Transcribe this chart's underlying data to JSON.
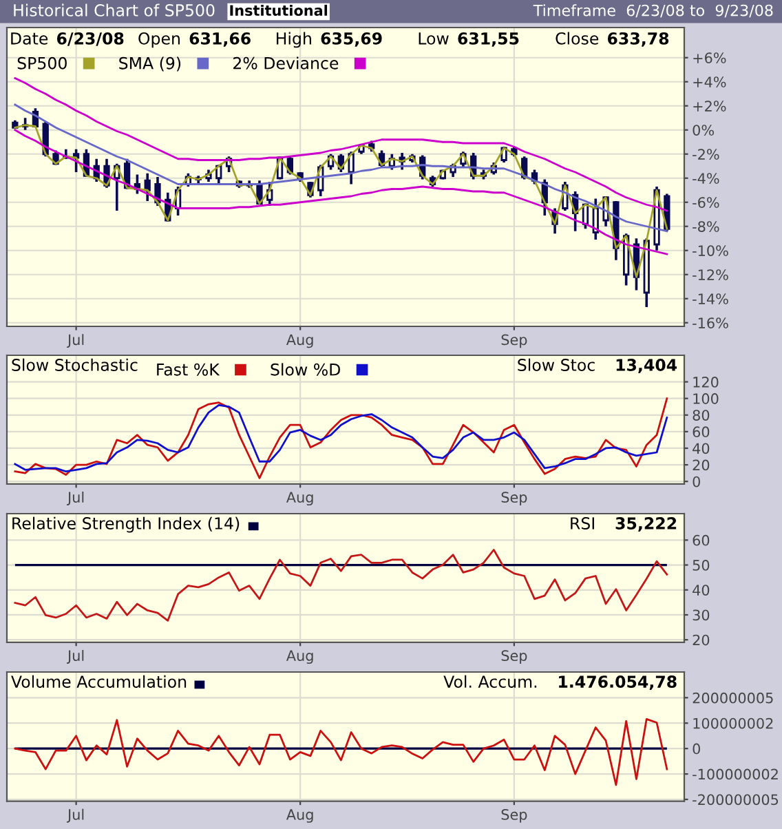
{
  "chart_data": [
    {
      "type": "candlestick",
      "title": "Historical Chart of SP500",
      "annotations": [
        "Institutional",
        "Timeframe  6/23/08 to  9/23/08",
        "Date",
        "6/23/08",
        "Open",
        "631,66",
        "High",
        "635,69",
        "Low",
        "631,55",
        "Close",
        "633,78"
      ],
      "categories": [
        null,
        null,
        null,
        null,
        null,
        null,
        "Jul",
        null,
        null,
        null,
        null,
        null,
        null,
        null,
        null,
        null,
        null,
        null,
        null,
        null,
        null,
        null,
        null,
        null,
        null,
        null,
        null,
        null,
        "Aug",
        null,
        null,
        null,
        null,
        null,
        null,
        null,
        null,
        null,
        null,
        null,
        null,
        null,
        null,
        null,
        null,
        null,
        null,
        null,
        null,
        "Sep",
        null,
        null,
        null,
        null,
        null,
        null,
        null,
        null,
        null,
        null,
        null,
        null,
        null,
        null,
        null
      ],
      "ohlc": [
        [
          0.6,
          0.8,
          0.1,
          0.2
        ],
        [
          0.3,
          1.0,
          0,
          0.4
        ],
        [
          1.5,
          1.8,
          0.2,
          0.3
        ],
        [
          0.5,
          0.7,
          -2.2,
          -2.0
        ],
        [
          -2.0,
          -1.7,
          -2.9,
          -2.8
        ],
        [
          -2.3,
          -1.6,
          -2.4,
          -2.2
        ],
        [
          -2.0,
          -1.6,
          -3.5,
          -2.3
        ],
        [
          -2.0,
          -1.6,
          -3.9,
          -3.8
        ],
        [
          -3.0,
          -2.4,
          -4.3,
          -4.0
        ],
        [
          -3.0,
          -2.4,
          -4.8,
          -4.6
        ],
        [
          -4.0,
          -2.8,
          -6.7,
          -3.0
        ],
        [
          -2.8,
          -2.4,
          -4.9,
          -4.8
        ],
        [
          -4.5,
          -3.7,
          -5.3,
          -4.9
        ],
        [
          -4.2,
          -3.6,
          -5.9,
          -5.0
        ],
        [
          -4.5,
          -3.9,
          -6.3,
          -6.0
        ],
        [
          -5.8,
          -5.2,
          -7.6,
          -7.5
        ],
        [
          -6.5,
          -4.7,
          -7.1,
          -5.0
        ],
        [
          -4.5,
          -3.6,
          -4.7,
          -3.9
        ],
        [
          -4.0,
          -3.8,
          -4.5,
          -4.1
        ],
        [
          -4.0,
          -3.3,
          -4.3,
          -3.7
        ],
        [
          -4.0,
          -2.9,
          -4.5,
          -3.0
        ],
        [
          -3.0,
          -2.2,
          -3.5,
          -2.4
        ],
        [
          -4.3,
          -4.2,
          -4.8,
          -4.6
        ],
        [
          -4.6,
          -4.2,
          -4.8,
          -4.5
        ],
        [
          -4.5,
          -4.2,
          -6.2,
          -6.1
        ],
        [
          -5.8,
          -4.3,
          -6.3,
          -5.0
        ],
        [
          -4.0,
          -2.2,
          -4.1,
          -2.3
        ],
        [
          -2.4,
          -2.2,
          -3.7,
          -3.5
        ],
        [
          -3.6,
          -3.5,
          -4.3,
          -4.0
        ],
        [
          -4.4,
          -4.3,
          -5.6,
          -5.4
        ],
        [
          -5.0,
          -2.9,
          -5.5,
          -3.1
        ],
        [
          -3.0,
          -2.0,
          -3.3,
          -2.2
        ],
        [
          -2.2,
          -2.0,
          -3.5,
          -3.2
        ],
        [
          -3.5,
          -1.8,
          -4.5,
          -2.0
        ],
        [
          -1.8,
          -1.2,
          -2.0,
          -1.3
        ],
        [
          -1.2,
          -0.9,
          -1.8,
          -1.5
        ],
        [
          -2.0,
          -1.7,
          -3.1,
          -2.9
        ],
        [
          -3.0,
          -2.0,
          -3.3,
          -2.4
        ],
        [
          -2.3,
          -1.9,
          -3.3,
          -2.6
        ],
        [
          -2.5,
          -2.0,
          -2.7,
          -2.2
        ],
        [
          -2.3,
          -2.1,
          -4.1,
          -3.8
        ],
        [
          -4.0,
          -3.8,
          -4.7,
          -4.5
        ],
        [
          -4.0,
          -3.3,
          -4.1,
          -3.4
        ],
        [
          -3.5,
          -2.8,
          -3.9,
          -3.0
        ],
        [
          -2.8,
          -1.8,
          -3.1,
          -2.0
        ],
        [
          -2.2,
          -1.9,
          -4.1,
          -3.8
        ],
        [
          -3.6,
          -3.3,
          -4.1,
          -3.8
        ],
        [
          -3.5,
          -2.7,
          -3.7,
          -3.0
        ],
        [
          -2.5,
          -1.4,
          -2.7,
          -1.5
        ],
        [
          -1.6,
          -1.4,
          -2.2,
          -2.0
        ],
        [
          -2.4,
          -2.2,
          -4.1,
          -3.9
        ],
        [
          -3.6,
          -3.3,
          -4.5,
          -4.2
        ],
        [
          -4.4,
          -4.1,
          -7.1,
          -6.0
        ],
        [
          -6.8,
          -6.5,
          -8.6,
          -7.8
        ],
        [
          -6.5,
          -4.3,
          -6.7,
          -4.6
        ],
        [
          -5.4,
          -5.1,
          -8.4,
          -6.9
        ],
        [
          -7.8,
          -6.1,
          -8.2,
          -6.2
        ],
        [
          -8.5,
          -5.7,
          -9.1,
          -6.5
        ],
        [
          -7.5,
          -5.5,
          -8.0,
          -5.6
        ],
        [
          -6.0,
          -5.9,
          -10.8,
          -9.8
        ],
        [
          -12.0,
          -8.6,
          -12.9,
          -8.8
        ],
        [
          -9.5,
          -9.0,
          -13.3,
          -12.2
        ],
        [
          -13.5,
          -9.0,
          -14.7,
          -9.2
        ],
        [
          -9.5,
          -4.7,
          -10.0,
          -5.0
        ],
        [
          -5.5,
          -5.3,
          -8.4,
          -8.2
        ]
      ],
      "series": [
        {
          "type": "line",
          "name": "SP500",
          "color": "#a3a32a",
          "values": [
            0.2,
            0.4,
            0.3,
            -2.0,
            -2.8,
            -2.2,
            -2.3,
            -3.8,
            -4.0,
            -4.6,
            -3.0,
            -4.8,
            -4.9,
            -5.0,
            -6.0,
            -7.5,
            -5.0,
            -3.9,
            -4.1,
            -3.7,
            -3.0,
            -2.4,
            -4.6,
            -4.5,
            -6.1,
            -5.0,
            -2.3,
            -3.5,
            -4.0,
            -5.4,
            -3.1,
            -2.2,
            -3.2,
            -2.0,
            -1.3,
            -1.5,
            -2.9,
            -2.4,
            -2.6,
            -2.2,
            -3.8,
            -4.5,
            -3.4,
            -3.0,
            -2.0,
            -3.8,
            -3.8,
            -3.0,
            -1.5,
            -2.0,
            -3.9,
            -4.2,
            -6.0,
            -7.8,
            -4.6,
            -6.9,
            -6.2,
            -6.5,
            -5.6,
            -9.8,
            -8.8,
            -12.2,
            -9.2,
            -5.0,
            -8.2
          ]
        },
        {
          "type": "line",
          "name": "SMA (9)",
          "color": "#6868c8",
          "values": [
            2.1,
            1.6,
            1.2,
            0.7,
            0.2,
            -0.2,
            -0.6,
            -1.0,
            -1.4,
            -1.8,
            -2.2,
            -2.5,
            -2.9,
            -3.3,
            -3.7,
            -4.1,
            -4.5,
            -4.5,
            -4.5,
            -4.5,
            -4.5,
            -4.5,
            -4.5,
            -4.5,
            -4.5,
            -4.4,
            -4.3,
            -4.2,
            -4.1,
            -4.0,
            -3.9,
            -3.8,
            -3.7,
            -3.6,
            -3.4,
            -3.3,
            -3.1,
            -3.1,
            -3.0,
            -3.0,
            -2.9,
            -3.0,
            -3.0,
            -3.1,
            -3.1,
            -3.1,
            -3.2,
            -3.2,
            -3.2,
            -3.5,
            -3.8,
            -4.2,
            -4.5,
            -4.9,
            -5.2,
            -5.6,
            -5.9,
            -6.3,
            -6.7,
            -7.2,
            -7.6,
            -7.8,
            -8.0,
            -8.2,
            -8.4
          ]
        },
        {
          "type": "line",
          "name": "2% Deviance",
          "color": "#cc00cc",
          "values": [
            4.3,
            3.9,
            3.4,
            3.0,
            2.5,
            2.1,
            1.6,
            1.2,
            0.7,
            0.3,
            -0.1,
            -0.4,
            -0.8,
            -1.2,
            -1.6,
            -2.0,
            -2.4,
            -2.4,
            -2.5,
            -2.5,
            -2.5,
            -2.5,
            -2.5,
            -2.4,
            -2.4,
            -2.3,
            -2.3,
            -2.2,
            -2.1,
            -2.0,
            -1.9,
            -1.7,
            -1.6,
            -1.4,
            -1.2,
            -1.0,
            -0.8,
            -0.8,
            -0.8,
            -0.8,
            -0.8,
            -0.9,
            -1.0,
            -1.0,
            -1.1,
            -1.1,
            -1.1,
            -1.1,
            -1.1,
            -1.4,
            -1.8,
            -2.1,
            -2.4,
            -2.8,
            -3.2,
            -3.5,
            -3.9,
            -4.3,
            -4.7,
            -5.2,
            -5.6,
            -5.9,
            -6.2,
            -6.4,
            -6.7
          ]
        },
        {
          "type": "line",
          "color": "#cc00cc",
          "values": [
            0.0,
            -0.5,
            -0.9,
            -1.4,
            -1.8,
            -2.2,
            -2.6,
            -3.0,
            -3.4,
            -3.8,
            -4.2,
            -4.5,
            -4.9,
            -5.3,
            -5.7,
            -6.1,
            -6.5,
            -6.5,
            -6.5,
            -6.5,
            -6.5,
            -6.5,
            -6.4,
            -6.4,
            -6.3,
            -6.2,
            -6.2,
            -6.1,
            -6.0,
            -5.9,
            -5.8,
            -5.7,
            -5.6,
            -5.5,
            -5.3,
            -5.2,
            -5.0,
            -4.9,
            -4.9,
            -4.8,
            -4.7,
            -4.8,
            -4.9,
            -4.9,
            -5.0,
            -5.1,
            -5.1,
            -5.2,
            -5.2,
            -5.5,
            -5.8,
            -6.1,
            -6.4,
            -6.8,
            -7.1,
            -7.5,
            -7.8,
            -8.2,
            -8.7,
            -9.1,
            -9.5,
            -9.7,
            -9.9,
            -10.1,
            -10.3
          ]
        }
      ],
      "ylim": [
        -16.3,
        8.5
      ],
      "yticks": [
        {
          "value": -16,
          "label": "-16%"
        },
        {
          "value": -14,
          "label": "-14%"
        },
        {
          "value": -12,
          "label": "-12%"
        },
        {
          "value": -10,
          "label": "-10%"
        },
        {
          "value": -8,
          "label": "-8%"
        },
        {
          "value": -6,
          "label": "-6%"
        },
        {
          "value": -4,
          "label": "-4%"
        },
        {
          "value": -2,
          "label": "-2%"
        },
        {
          "value": 0,
          "label": "0%"
        },
        {
          "value": 2,
          "label": "+2%"
        },
        {
          "value": 4,
          "label": "+4%"
        },
        {
          "value": 6,
          "label": "+6%"
        }
      ],
      "grid": true,
      "legend": "top left"
    },
    {
      "type": "line",
      "title": "Slow Stochastic",
      "annotations": [
        "Slow Stoc",
        "13,404"
      ],
      "categories": [
        null,
        null,
        null,
        null,
        null,
        null,
        "Jul",
        null,
        null,
        null,
        null,
        null,
        null,
        null,
        null,
        null,
        null,
        null,
        null,
        null,
        null,
        null,
        null,
        null,
        null,
        null,
        null,
        null,
        "Aug",
        null,
        null,
        null,
        null,
        null,
        null,
        null,
        null,
        null,
        null,
        null,
        null,
        null,
        null,
        null,
        null,
        null,
        null,
        null,
        null,
        "Sep",
        null,
        null,
        null,
        null,
        null,
        null,
        null,
        null,
        null,
        null,
        null,
        null,
        null,
        null,
        null
      ],
      "series": [
        {
          "name": "Fast %K",
          "color": "#cc1010",
          "values": [
            12,
            10,
            21,
            16,
            15,
            8,
            20,
            20,
            24,
            21,
            50,
            46,
            56,
            44,
            41,
            25,
            35,
            56,
            87,
            93,
            95,
            89,
            56,
            30,
            4,
            30,
            53,
            68,
            68,
            41,
            47,
            62,
            74,
            80,
            80,
            77,
            68,
            56,
            53,
            50,
            41,
            21,
            21,
            44,
            68,
            59,
            47,
            35,
            62,
            68,
            47,
            27,
            9,
            15,
            27,
            30,
            28,
            30,
            50,
            40,
            38,
            18,
            44,
            56,
            100
          ]
        },
        {
          "name": "Slow %D",
          "color": "#1010cc",
          "values": [
            21,
            14,
            15,
            16,
            16,
            12,
            14,
            16,
            21,
            22,
            35,
            41,
            50,
            49,
            46,
            38,
            35,
            41,
            65,
            83,
            92,
            90,
            83,
            53,
            24,
            24,
            38,
            59,
            62,
            55,
            50,
            56,
            68,
            75,
            79,
            81,
            74,
            65,
            59,
            53,
            41,
            30,
            28,
            38,
            53,
            59,
            50,
            50,
            53,
            59,
            50,
            33,
            16,
            18,
            22,
            27,
            27,
            33,
            40,
            41,
            35,
            31,
            33,
            35,
            77
          ]
        }
      ],
      "ylim": [
        -3,
        152
      ],
      "yticks": [
        0,
        20,
        40,
        60,
        80,
        100,
        120
      ],
      "grid": true,
      "legend": "top"
    },
    {
      "type": "line",
      "title": "Relative Strength Index (14)",
      "annotations": [
        "RSI",
        "35,222"
      ],
      "categories": [
        null,
        null,
        null,
        null,
        null,
        null,
        "Jul",
        null,
        null,
        null,
        null,
        null,
        null,
        null,
        null,
        null,
        null,
        null,
        null,
        null,
        null,
        null,
        null,
        null,
        null,
        null,
        null,
        null,
        "Aug",
        null,
        null,
        null,
        null,
        null,
        null,
        null,
        null,
        null,
        null,
        null,
        null,
        null,
        null,
        null,
        null,
        null,
        null,
        null,
        null,
        "Sep",
        null,
        null,
        null,
        null,
        null,
        null,
        null,
        null,
        null,
        null,
        null,
        null,
        null,
        null,
        null
      ],
      "series": [
        {
          "color": "#c41818",
          "values": [
            34.8,
            33.8,
            37.1,
            29.9,
            28.9,
            30.4,
            33.8,
            28.9,
            30.4,
            28.5,
            35.2,
            29.9,
            34.4,
            31.8,
            30.8,
            27.7,
            38.3,
            41.7,
            41.1,
            42.3,
            45,
            47,
            39.7,
            41.7,
            36.4,
            44.6,
            52.1,
            46.6,
            45.6,
            41.7,
            50.9,
            52.5,
            47.6,
            53.5,
            54.1,
            50.9,
            50.9,
            52.1,
            52.1,
            47,
            44.6,
            48.2,
            50.1,
            54.1,
            47,
            48.2,
            50.9,
            56.1,
            49,
            46.6,
            45.6,
            36.4,
            37.7,
            44.2,
            35.8,
            38.7,
            44.6,
            45.6,
            34.4,
            40.3,
            31.8,
            38,
            44.5,
            51.5,
            46.2
          ]
        }
      ],
      "ref_lines": [
        {
          "axis": "y",
          "value": 50,
          "color": "#000040"
        }
      ],
      "ylim": [
        19,
        70.6
      ],
      "yticks": [
        20,
        30,
        40,
        50,
        60
      ],
      "grid": true
    },
    {
      "type": "line",
      "title": "Volume Accumulation",
      "annotations": [
        "Vol. Accum.",
        "1.476.054,78"
      ],
      "categories": [
        null,
        null,
        null,
        null,
        null,
        null,
        "Jul",
        null,
        null,
        null,
        null,
        null,
        null,
        null,
        null,
        null,
        null,
        null,
        null,
        null,
        null,
        null,
        null,
        null,
        null,
        null,
        null,
        null,
        "Aug",
        null,
        null,
        null,
        null,
        null,
        null,
        null,
        null,
        null,
        null,
        null,
        null,
        null,
        null,
        null,
        null,
        null,
        null,
        null,
        null,
        "Sep",
        null,
        null,
        null,
        null,
        null,
        null,
        null,
        null,
        null,
        null,
        null,
        null,
        null,
        null,
        null
      ],
      "series": [
        {
          "color": "#cc1010",
          "values": [
            0,
            -8000000,
            -14000000,
            -81000000,
            -8000000,
            -8000000,
            50000000,
            -46000000,
            12000000,
            -23000000,
            112000000,
            -71000000,
            39000000,
            -8000000,
            -43000000,
            -19000000,
            70000000,
            19000000,
            12000000,
            -8000000,
            50000000,
            -14000000,
            -66000000,
            6000000,
            -62000000,
            54000000,
            54000000,
            -43000000,
            -14000000,
            -29000000,
            70000000,
            25000000,
            -46000000,
            64000000,
            0,
            -19000000,
            6000000,
            12000000,
            6000000,
            -20000000,
            -39000000,
            -4000000,
            25000000,
            15000000,
            15000000,
            -52000000,
            0,
            12000000,
            35000000,
            -43000000,
            -43000000,
            12000000,
            -85000000,
            50000000,
            15000000,
            -100000000,
            -8000000,
            83000000,
            31000000,
            -143000000,
            108000000,
            -120000000,
            116000000,
            102000000,
            -81000000
          ]
        }
      ],
      "ref_lines": [
        {
          "axis": "y",
          "value": 0,
          "color": "#000040"
        }
      ],
      "ylim": [
        -207000000,
        301000000
      ],
      "yticks": [
        -200000005,
        -100000002,
        0,
        100000002,
        200000005
      ],
      "grid": true
    }
  ]
}
